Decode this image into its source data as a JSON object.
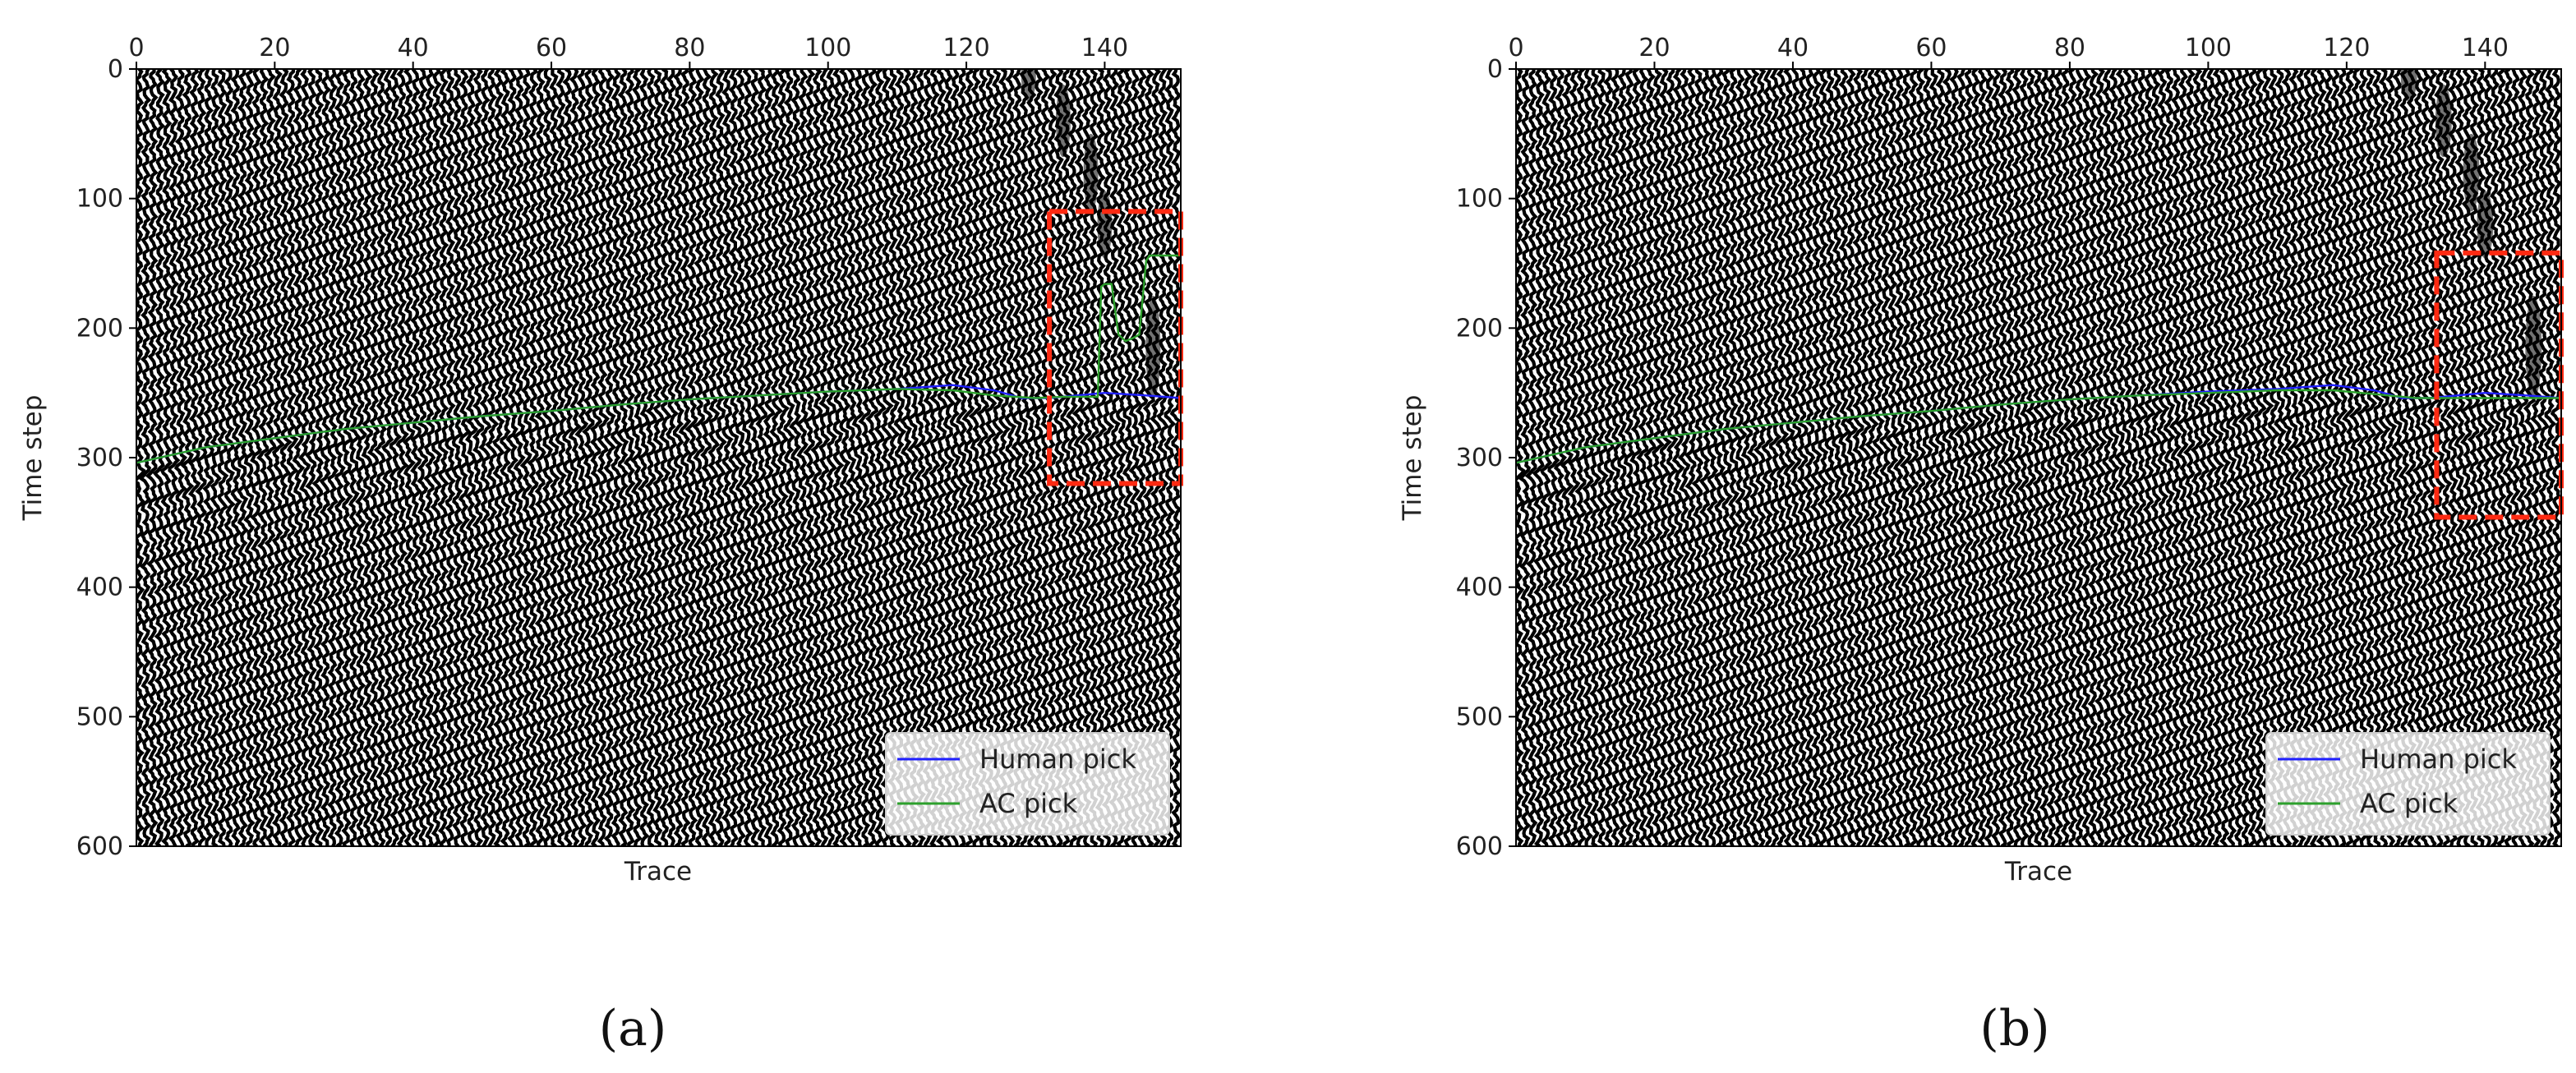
{
  "chart_data": [
    {
      "type": "line",
      "panel_label": "(a)",
      "background": "seismic wiggle traces (black/white variable area)",
      "xlabel": "Trace",
      "ylabel": "Time step",
      "xlim": [
        0,
        151
      ],
      "ylim": [
        600,
        0
      ],
      "x_ticks": [
        0,
        20,
        40,
        60,
        80,
        100,
        120,
        140
      ],
      "y_ticks": [
        0,
        100,
        200,
        300,
        400,
        500,
        600
      ],
      "x_axis_position": "top",
      "legend": {
        "location": "lower-right",
        "entries": [
          "Human pick",
          "AC pick"
        ]
      },
      "series": [
        {
          "name": "Human pick",
          "color": "#1f1fff",
          "x": [
            0,
            10,
            20,
            30,
            40,
            50,
            60,
            70,
            80,
            90,
            100,
            110,
            118,
            124,
            128,
            132,
            136,
            140,
            146,
            151
          ],
          "y": [
            304,
            292,
            285,
            278,
            273,
            268,
            264,
            259,
            255,
            252,
            249,
            247,
            244,
            248,
            254,
            254,
            252,
            250,
            252,
            254
          ]
        },
        {
          "name": "AC pick",
          "color": "#2ca02c",
          "x": [
            0,
            10,
            20,
            30,
            40,
            50,
            60,
            70,
            80,
            90,
            100,
            110,
            118,
            124,
            130,
            134,
            138,
            139,
            139.5,
            140,
            141,
            142,
            143,
            144,
            145,
            146,
            146.5,
            147,
            151
          ],
          "y": [
            304,
            292,
            285,
            278,
            273,
            268,
            264,
            259,
            255,
            252,
            249,
            247,
            248,
            252,
            254,
            253,
            253,
            253,
            168,
            166,
            166,
            205,
            210,
            208,
            205,
            148,
            144,
            144,
            144
          ]
        }
      ],
      "annotations": [
        {
          "type": "dashed-box",
          "color": "#ff2a12",
          "x_range": [
            132,
            151
          ],
          "y_range": [
            110,
            320
          ]
        }
      ]
    },
    {
      "type": "line",
      "panel_label": "(b)",
      "background": "seismic wiggle traces (black/white variable area)",
      "xlabel": "Trace",
      "ylabel": "Time step",
      "xlim": [
        0,
        151
      ],
      "ylim": [
        600,
        0
      ],
      "x_ticks": [
        0,
        20,
        40,
        60,
        80,
        100,
        120,
        140
      ],
      "y_ticks": [
        0,
        100,
        200,
        300,
        400,
        500,
        600
      ],
      "x_axis_position": "top",
      "legend": {
        "location": "lower-right",
        "entries": [
          "Human pick",
          "AC pick"
        ]
      },
      "series": [
        {
          "name": "Human pick",
          "color": "#1f1fff",
          "x": [
            0,
            10,
            20,
            30,
            40,
            50,
            60,
            70,
            80,
            90,
            100,
            110,
            118,
            124,
            128,
            132,
            136,
            140,
            146,
            151
          ],
          "y": [
            304,
            292,
            285,
            278,
            273,
            268,
            264,
            259,
            255,
            252,
            249,
            247,
            244,
            248,
            254,
            254,
            252,
            250,
            252,
            254
          ]
        },
        {
          "name": "AC pick",
          "color": "#2ca02c",
          "x": [
            0,
            10,
            20,
            30,
            40,
            50,
            60,
            70,
            80,
            90,
            100,
            110,
            118,
            124,
            130,
            136,
            142,
            151
          ],
          "y": [
            304,
            292,
            285,
            278,
            273,
            268,
            264,
            259,
            255,
            252,
            250,
            248,
            248,
            251,
            254,
            254,
            254,
            254
          ]
        }
      ],
      "annotations": [
        {
          "type": "dashed-box",
          "color": "#ff2a12",
          "x_range": [
            133,
            151
          ],
          "y_range": [
            142,
            346
          ]
        }
      ]
    }
  ]
}
